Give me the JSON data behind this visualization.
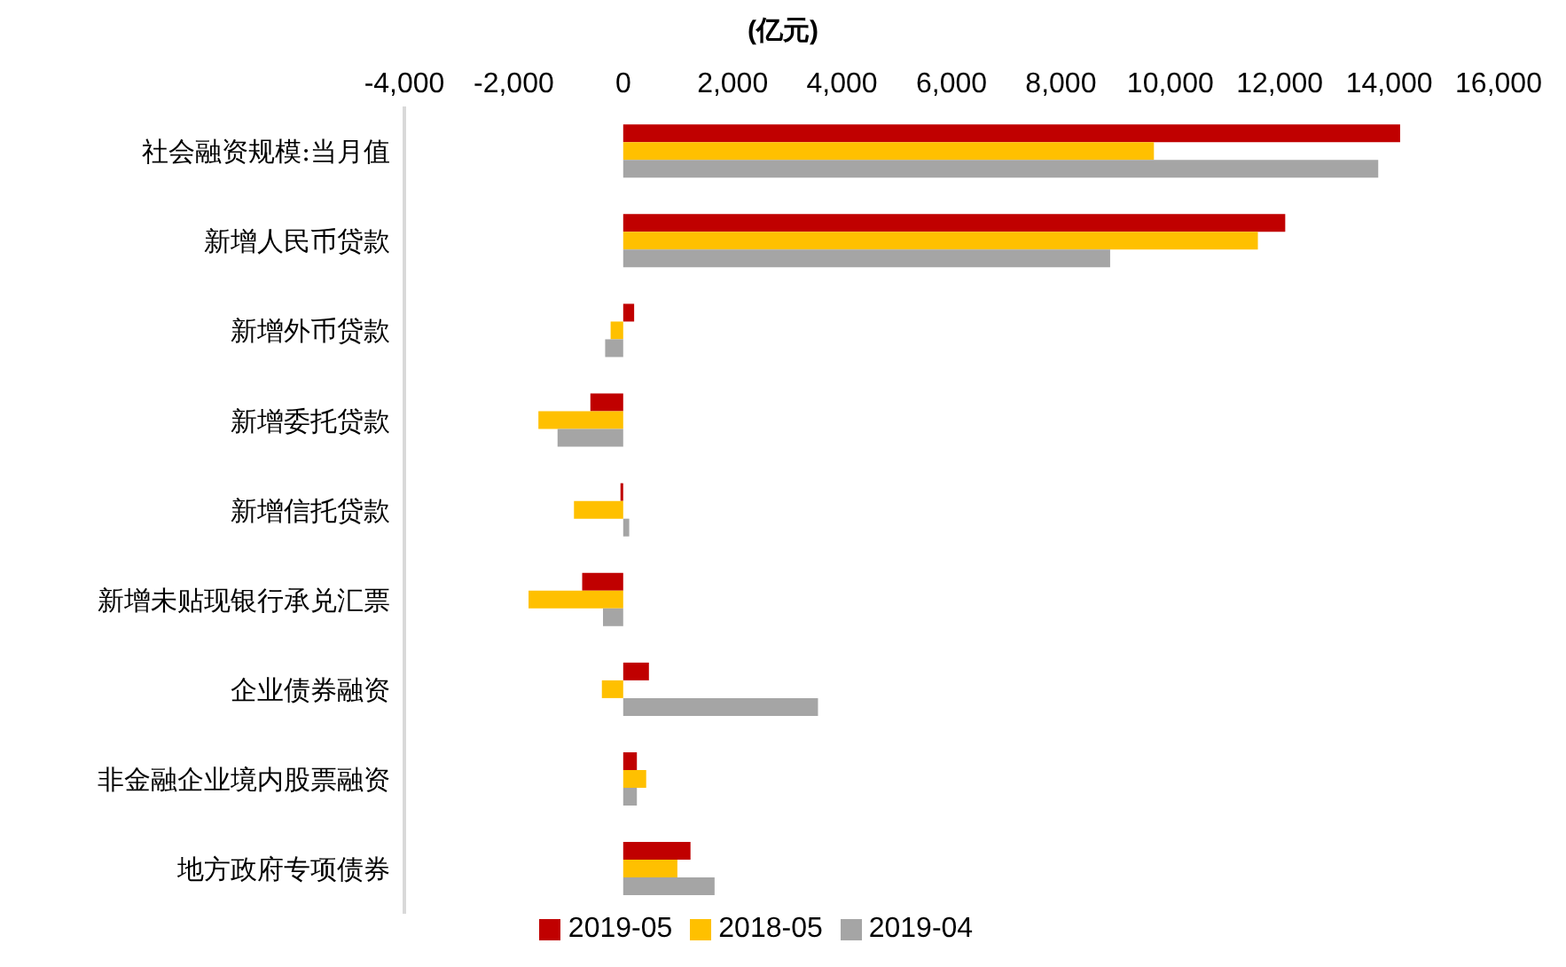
{
  "chart_data": {
    "type": "bar",
    "orientation": "horizontal",
    "xlabel": "(亿元)",
    "categories": [
      "社会融资规模:当月值",
      "新增人民币贷款",
      "新增外币贷款",
      "新增委托贷款",
      "新增信托贷款",
      "新增未贴现银行承兑汇票",
      "企业债券融资",
      "非金融企业境内股票融资",
      "地方政府专项债券"
    ],
    "series": [
      {
        "name": "2019-05",
        "color": "#c00000",
        "values": [
          14200,
          12100,
          200,
          -600,
          -50,
          -750,
          470,
          250,
          1230
        ]
      },
      {
        "name": "2018-05",
        "color": "#ffc000",
        "values": [
          9700,
          11600,
          -230,
          -1550,
          -900,
          -1730,
          -390,
          420,
          990
        ]
      },
      {
        "name": "2019-04",
        "color": "#a5a5a5",
        "values": [
          13800,
          8900,
          -330,
          -1200,
          110,
          -370,
          3560,
          250,
          1670
        ]
      }
    ],
    "xlim": [
      -4000,
      16000
    ],
    "xticks": [
      {
        "value": -4000,
        "label": "-4,000"
      },
      {
        "value": -2000,
        "label": "-2,000"
      },
      0,
      {
        "value": 2000,
        "label": "2,000"
      },
      {
        "value": 4000,
        "label": "4,000"
      },
      {
        "value": 6000,
        "label": "6,000"
      },
      {
        "value": 8000,
        "label": "8,000"
      },
      {
        "value": 10000,
        "label": "10,000"
      },
      {
        "value": 12000,
        "label": "12,000"
      },
      {
        "value": 14000,
        "label": "14,000"
      },
      {
        "value": 16000,
        "label": "16,000"
      }
    ],
    "grid": false,
    "legend": "bottom"
  }
}
